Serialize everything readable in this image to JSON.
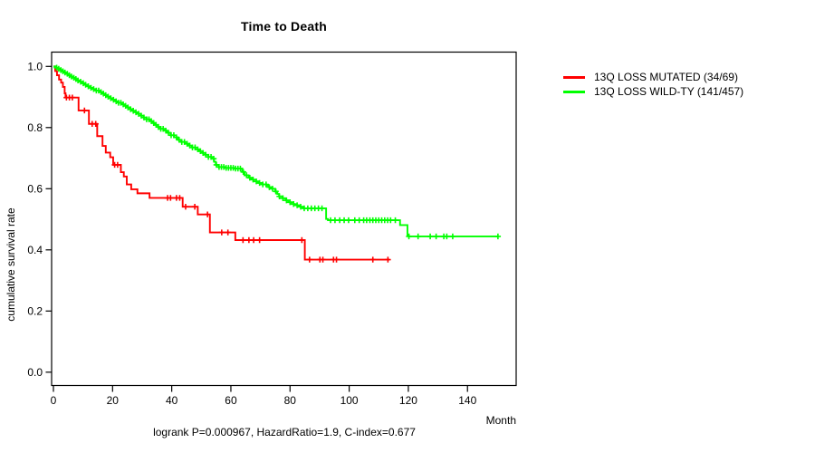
{
  "chart_data": {
    "type": "line",
    "subtype": "kaplan-meier-step-curves",
    "title": "Time to Death",
    "xlabel": "Month",
    "ylabel": "cumulative survival rate",
    "annotation": "logrank P=0.000967, HazardRatio=1.9, C-index=0.677",
    "xlim": [
      0,
      156
    ],
    "ylim": [
      0,
      1.0
    ],
    "x_ticks": [
      0,
      20,
      40,
      60,
      80,
      100,
      120,
      140
    ],
    "y_ticks": [
      "0.0",
      "0.2",
      "0.4",
      "0.6",
      "0.8",
      "1.0"
    ],
    "grid": false,
    "legend_position": "right-outside",
    "axis_color": "#000000",
    "series": [
      {
        "name": "13Q LOSS MUTATED (34/69)",
        "color": "#ff0000",
        "end_month": 113.6,
        "points": [
          [
            0,
            1.0
          ],
          [
            0.6,
            0.985
          ],
          [
            1.2,
            0.971
          ],
          [
            1.9,
            0.957
          ],
          [
            2.6,
            0.947
          ],
          [
            3.2,
            0.933
          ],
          [
            3.8,
            0.912
          ],
          [
            4.1,
            0.898
          ],
          [
            8.5,
            0.856
          ],
          [
            12.0,
            0.812
          ],
          [
            14.8,
            0.772
          ],
          [
            16.6,
            0.74
          ],
          [
            17.7,
            0.718
          ],
          [
            19.2,
            0.703
          ],
          [
            20.2,
            0.678
          ],
          [
            22.8,
            0.654
          ],
          [
            23.8,
            0.64
          ],
          [
            24.8,
            0.614
          ],
          [
            26.3,
            0.598
          ],
          [
            28.4,
            0.585
          ],
          [
            32.5,
            0.57
          ],
          [
            43.7,
            0.541
          ],
          [
            48.8,
            0.516
          ],
          [
            52.9,
            0.457
          ],
          [
            61.5,
            0.432
          ],
          [
            85.0,
            0.368
          ]
        ],
        "censor_months": [
          4.4,
          5.4,
          6.4,
          10.5,
          13.1,
          14.3,
          20.7,
          21.7,
          38.6,
          39.6,
          41.6,
          42.7,
          44.7,
          47.8,
          52.1,
          56.9,
          59.0,
          64.1,
          66.1,
          67.7,
          69.7,
          84.0,
          86.6,
          90.1,
          91.1,
          94.7,
          95.7,
          108.0,
          113.1
        ]
      },
      {
        "name": "13Q LOSS WILD-TY (141/457)",
        "color": "#00ff00",
        "end_month": 150.3,
        "points": [
          [
            0,
            1.0
          ],
          [
            0.7,
            0.996
          ],
          [
            1.4,
            0.992
          ],
          [
            2.1,
            0.988
          ],
          [
            2.9,
            0.984
          ],
          [
            3.6,
            0.98
          ],
          [
            4.3,
            0.976
          ],
          [
            5.0,
            0.971
          ],
          [
            5.8,
            0.967
          ],
          [
            6.5,
            0.963
          ],
          [
            7.2,
            0.959
          ],
          [
            8.0,
            0.954
          ],
          [
            8.7,
            0.95
          ],
          [
            9.7,
            0.945
          ],
          [
            10.7,
            0.94
          ],
          [
            11.6,
            0.935
          ],
          [
            12.5,
            0.93
          ],
          [
            13.5,
            0.926
          ],
          [
            14.4,
            0.921
          ],
          [
            15.4,
            0.916
          ],
          [
            16.3,
            0.911
          ],
          [
            17.3,
            0.906
          ],
          [
            18.2,
            0.901
          ],
          [
            19.2,
            0.896
          ],
          [
            20.1,
            0.891
          ],
          [
            21.0,
            0.886
          ],
          [
            22.0,
            0.881
          ],
          [
            22.9,
            0.876
          ],
          [
            23.9,
            0.871
          ],
          [
            24.8,
            0.866
          ],
          [
            25.8,
            0.86
          ],
          [
            26.7,
            0.855
          ],
          [
            27.7,
            0.85
          ],
          [
            28.6,
            0.845
          ],
          [
            29.6,
            0.839
          ],
          [
            30.5,
            0.833
          ],
          [
            31.5,
            0.827
          ],
          [
            32.4,
            0.821
          ],
          [
            33.4,
            0.815
          ],
          [
            34.3,
            0.809
          ],
          [
            35.3,
            0.802
          ],
          [
            36.2,
            0.796
          ],
          [
            37.2,
            0.79
          ],
          [
            38.4,
            0.783
          ],
          [
            39.6,
            0.775
          ],
          [
            40.8,
            0.768
          ],
          [
            42.0,
            0.76
          ],
          [
            43.2,
            0.753
          ],
          [
            44.4,
            0.747
          ],
          [
            45.6,
            0.741
          ],
          [
            46.8,
            0.735
          ],
          [
            48.0,
            0.729
          ],
          [
            49.3,
            0.723
          ],
          [
            50.4,
            0.717
          ],
          [
            51.4,
            0.711
          ],
          [
            52.4,
            0.704
          ],
          [
            53.4,
            0.698
          ],
          [
            54.3,
            0.688
          ],
          [
            54.9,
            0.678
          ],
          [
            55.9,
            0.671
          ],
          [
            58.0,
            0.668
          ],
          [
            61.0,
            0.666
          ],
          [
            63.8,
            0.655
          ],
          [
            64.6,
            0.644
          ],
          [
            66.0,
            0.636
          ],
          [
            66.9,
            0.63
          ],
          [
            67.7,
            0.624
          ],
          [
            69.2,
            0.619
          ],
          [
            70.7,
            0.614
          ],
          [
            72.0,
            0.61
          ],
          [
            72.9,
            0.605
          ],
          [
            73.8,
            0.6
          ],
          [
            75.0,
            0.591
          ],
          [
            75.7,
            0.583
          ],
          [
            76.3,
            0.575
          ],
          [
            77.5,
            0.569
          ],
          [
            78.5,
            0.562
          ],
          [
            79.4,
            0.556
          ],
          [
            80.4,
            0.55
          ],
          [
            81.5,
            0.546
          ],
          [
            82.8,
            0.541
          ],
          [
            84.5,
            0.536
          ],
          [
            92.2,
            0.501
          ],
          [
            92.8,
            0.497
          ],
          [
            117.2,
            0.481
          ],
          [
            119.7,
            0.447
          ],
          [
            120.2,
            0.444
          ]
        ],
        "censor_months": [
          1.1,
          1.8,
          2.5,
          3.2,
          3.9,
          4.7,
          5.4,
          6.1,
          6.9,
          7.6,
          8.3,
          9.2,
          10.1,
          10.9,
          11.8,
          12.7,
          13.6,
          14.5,
          15.3,
          16.1,
          16.9,
          17.7,
          18.5,
          19.4,
          20.3,
          21.2,
          22.0,
          22.8,
          23.6,
          24.4,
          25.2,
          26.1,
          27.0,
          27.9,
          28.8,
          29.7,
          30.6,
          31.5,
          32.3,
          33.1,
          33.9,
          34.7,
          35.5,
          36.3,
          37.1,
          38.0,
          38.9,
          39.8,
          40.7,
          41.6,
          42.5,
          43.4,
          44.3,
          45.2,
          46.1,
          47.0,
          47.9,
          48.8,
          49.7,
          50.6,
          51.5,
          52.4,
          53.3,
          54.2,
          55.1,
          56.0,
          56.8,
          57.6,
          58.4,
          59.2,
          60.0,
          60.8,
          61.6,
          62.4,
          63.2,
          64.2,
          65.3,
          66.4,
          67.5,
          68.6,
          69.7,
          70.8,
          71.9,
          73.0,
          74.1,
          75.2,
          76.4,
          77.6,
          78.8,
          80.0,
          81.2,
          82.4,
          83.6,
          84.8,
          86.0,
          87.2,
          88.4,
          89.6,
          90.8,
          93.7,
          95.2,
          96.8,
          98.3,
          99.8,
          101.9,
          103.4,
          104.9,
          105.9,
          107.0,
          108.0,
          109.0,
          110.0,
          111.0,
          112.0,
          113.0,
          114.0,
          115.6,
          120.2,
          123.3,
          127.4,
          129.4,
          132.0,
          133.0,
          135.0,
          150.3
        ]
      }
    ]
  }
}
